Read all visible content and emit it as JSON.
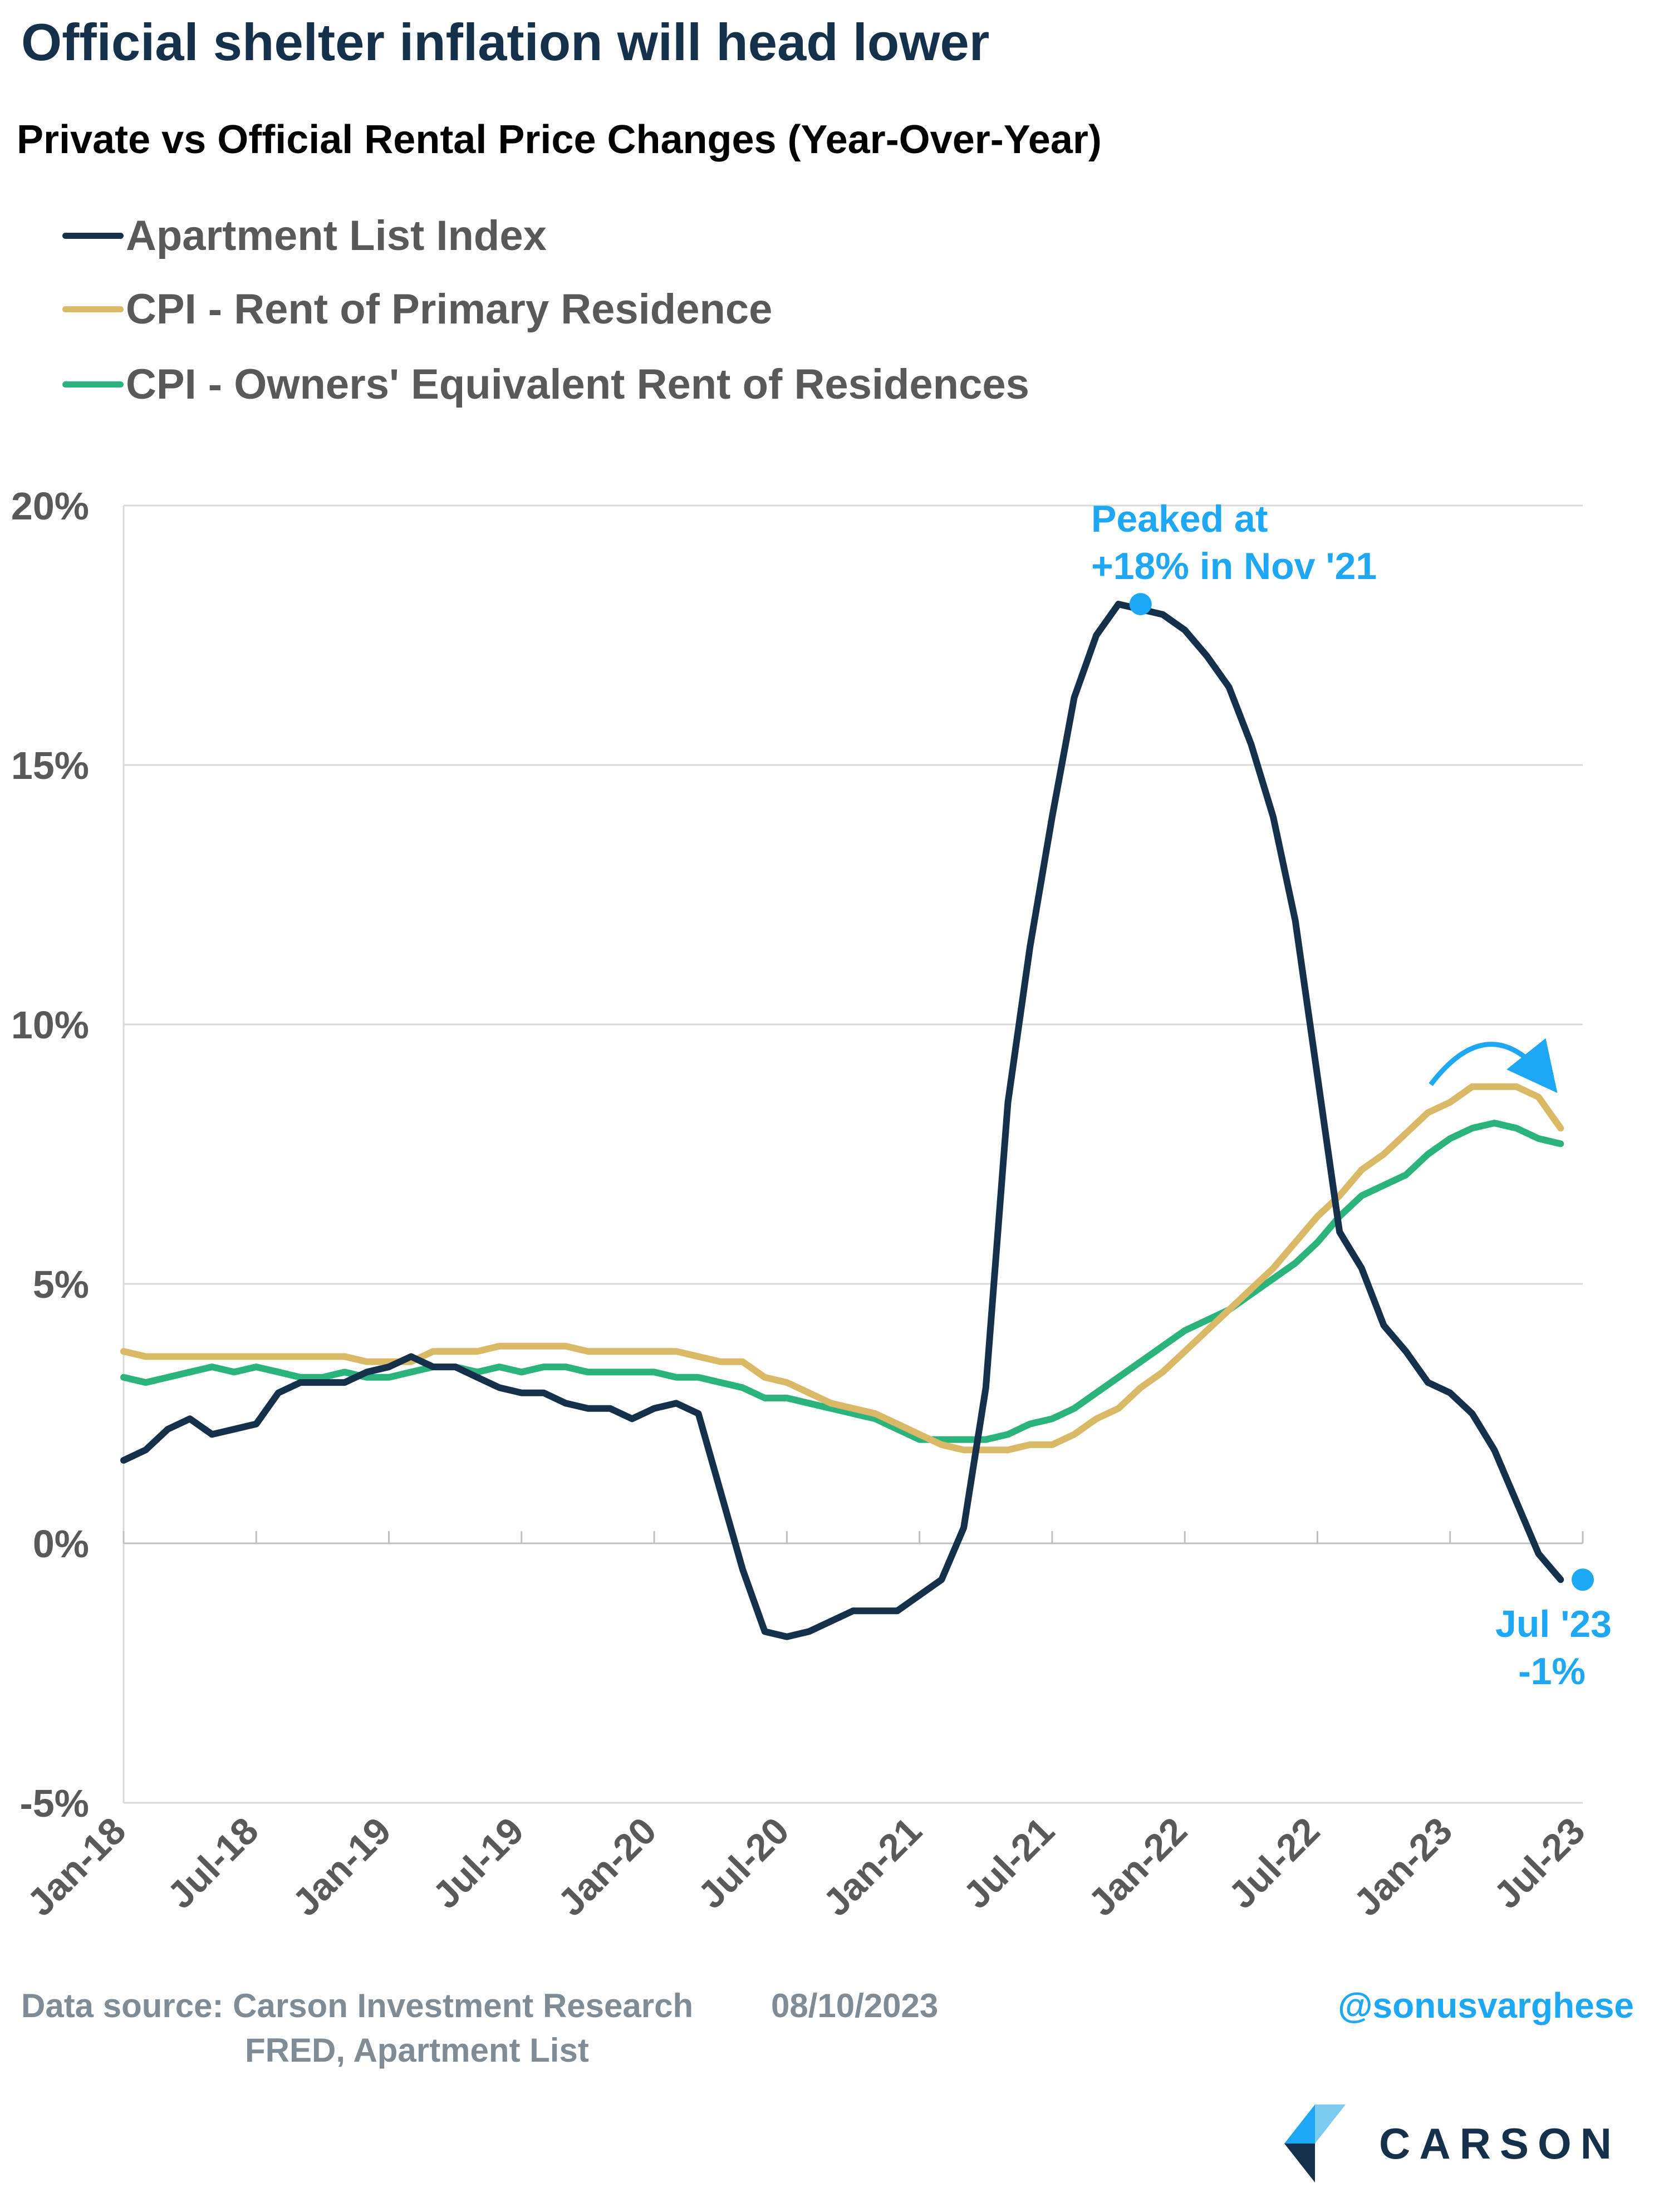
{
  "header": {
    "title": "Official shelter inflation will head lower",
    "subtitle": "Private vs Official Rental Price Changes (Year-Over-Year)"
  },
  "colors": {
    "apartment_list": "#14304a",
    "cpi_rent": "#d9b866",
    "cpi_oer": "#2bb37c",
    "accent": "#1ea7f5",
    "title": "#14304a",
    "grid": "#d9d9d9"
  },
  "footer": {
    "source_line1": "Data source: Carson Investment Research",
    "date": "08/10/2023",
    "source_line2": "FRED, Apartment List",
    "handle": "@sonusvarghese",
    "brand": "CARSON"
  },
  "chart_data": {
    "type": "line",
    "title": "Official shelter inflation will head lower",
    "subtitle": "Private vs Official Rental Price Changes (Year-Over-Year)",
    "xlabel": "",
    "ylabel": "",
    "ylim": [
      -5,
      20
    ],
    "y_ticks": [
      "20%",
      "15%",
      "10%",
      "5%",
      "0%",
      "-5%"
    ],
    "y_tick_values": [
      20,
      15,
      10,
      5,
      0,
      -5
    ],
    "x_tick_labels": [
      "Jan-18",
      "Jul-18",
      "Jan-19",
      "Jul-19",
      "Jan-20",
      "Jul-20",
      "Jan-21",
      "Jul-21",
      "Jan-22",
      "Jul-22",
      "Jan-23",
      "Jul-23"
    ],
    "x_tick_months": [
      "2018-01",
      "2018-07",
      "2019-01",
      "2019-07",
      "2020-01",
      "2020-07",
      "2021-01",
      "2021-07",
      "2022-01",
      "2022-07",
      "2023-01",
      "2023-07"
    ],
    "x_start": "2018-01",
    "x_end": "2023-07",
    "grid": "horizontal",
    "legend_position": "top-left",
    "series": [
      {
        "name": "Apartment List Index",
        "color": "#14304a",
        "values": [
          1.6,
          1.8,
          2.2,
          2.4,
          2.1,
          2.2,
          2.3,
          2.9,
          3.1,
          3.1,
          3.1,
          3.3,
          3.4,
          3.6,
          3.4,
          3.4,
          3.2,
          3.0,
          2.9,
          2.9,
          2.7,
          2.6,
          2.6,
          2.4,
          2.6,
          2.7,
          2.5,
          1.0,
          -0.5,
          -1.7,
          -1.8,
          -1.7,
          -1.5,
          -1.3,
          -1.3,
          -1.3,
          -1.0,
          -0.7,
          0.3,
          3.0,
          8.5,
          11.5,
          14.0,
          16.3,
          17.5,
          18.1,
          18.0,
          17.9,
          17.6,
          17.1,
          16.5,
          15.4,
          14.0,
          12.0,
          9.0,
          6.0,
          5.3,
          4.2,
          3.7,
          3.1,
          2.9,
          2.5,
          1.8,
          0.8,
          -0.2,
          -0.7
        ]
      },
      {
        "name": "CPI - Rent of Primary Residence",
        "color": "#d9b866",
        "values": [
          3.7,
          3.6,
          3.6,
          3.6,
          3.6,
          3.6,
          3.6,
          3.6,
          3.6,
          3.6,
          3.6,
          3.5,
          3.5,
          3.5,
          3.7,
          3.7,
          3.7,
          3.8,
          3.8,
          3.8,
          3.8,
          3.7,
          3.7,
          3.7,
          3.7,
          3.7,
          3.6,
          3.5,
          3.5,
          3.2,
          3.1,
          2.9,
          2.7,
          2.6,
          2.5,
          2.3,
          2.1,
          1.9,
          1.8,
          1.8,
          1.8,
          1.9,
          1.9,
          2.1,
          2.4,
          2.6,
          3.0,
          3.3,
          3.7,
          4.1,
          4.5,
          4.9,
          5.3,
          5.8,
          6.3,
          6.7,
          7.2,
          7.5,
          7.9,
          8.3,
          8.5,
          8.8,
          8.8,
          8.8,
          8.6,
          8.0
        ]
      },
      {
        "name": "CPI - Owners' Equivalent Rent of Residences",
        "color": "#2bb37c",
        "values": [
          3.2,
          3.1,
          3.2,
          3.3,
          3.4,
          3.3,
          3.4,
          3.3,
          3.2,
          3.2,
          3.3,
          3.2,
          3.2,
          3.3,
          3.4,
          3.4,
          3.3,
          3.4,
          3.3,
          3.4,
          3.4,
          3.3,
          3.3,
          3.3,
          3.3,
          3.2,
          3.2,
          3.1,
          3.0,
          2.8,
          2.8,
          2.7,
          2.6,
          2.5,
          2.4,
          2.2,
          2.0,
          2.0,
          2.0,
          2.0,
          2.1,
          2.3,
          2.4,
          2.6,
          2.9,
          3.2,
          3.5,
          3.8,
          4.1,
          4.3,
          4.5,
          4.8,
          5.1,
          5.4,
          5.8,
          6.3,
          6.7,
          6.9,
          7.1,
          7.5,
          7.8,
          8.0,
          8.1,
          8.0,
          7.8,
          7.7
        ]
      }
    ],
    "annotations": [
      {
        "text_line1": "Peaked at",
        "text_line2": "+18% in Nov '21",
        "month": "2021-11",
        "value": 18.1
      },
      {
        "text_line1": "Jul '23",
        "text_line2": "-1%",
        "month": "2023-07",
        "value": -0.7
      }
    ]
  }
}
